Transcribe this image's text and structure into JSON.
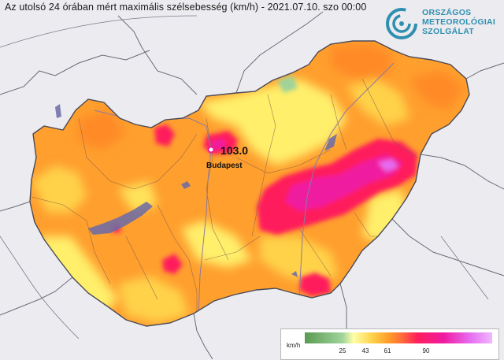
{
  "title": "Az utolsó 24 órában mért maximális szélsebesség (km/h) - 2021.07.10. szo 00:00",
  "logo": {
    "line1": "ORSZÁGOS",
    "line2": "METEOROLÓGIAI",
    "line3": "SZOLGÁLAT",
    "color": "#2f8fb0"
  },
  "station": {
    "value": "103.0",
    "city": "Budapest"
  },
  "legend": {
    "unit": "km/h",
    "ticks": [
      "25",
      "43",
      "61",
      "90"
    ],
    "colors": [
      "#5a9a52",
      "#9fd39a",
      "#ffffa8",
      "#ffd24a",
      "#ff9b2a",
      "#ff1f5c",
      "#f01aa0",
      "#e66cf0",
      "#efb8ff"
    ]
  },
  "colors": {
    "background": "#ececf0",
    "country_base": "#ff9f2e",
    "low_wind": "#ffef6a",
    "high_wind": "#ff1f5c",
    "extreme_wind": "#f01aa0",
    "border": "#555560",
    "water": "#6a6aa8"
  }
}
